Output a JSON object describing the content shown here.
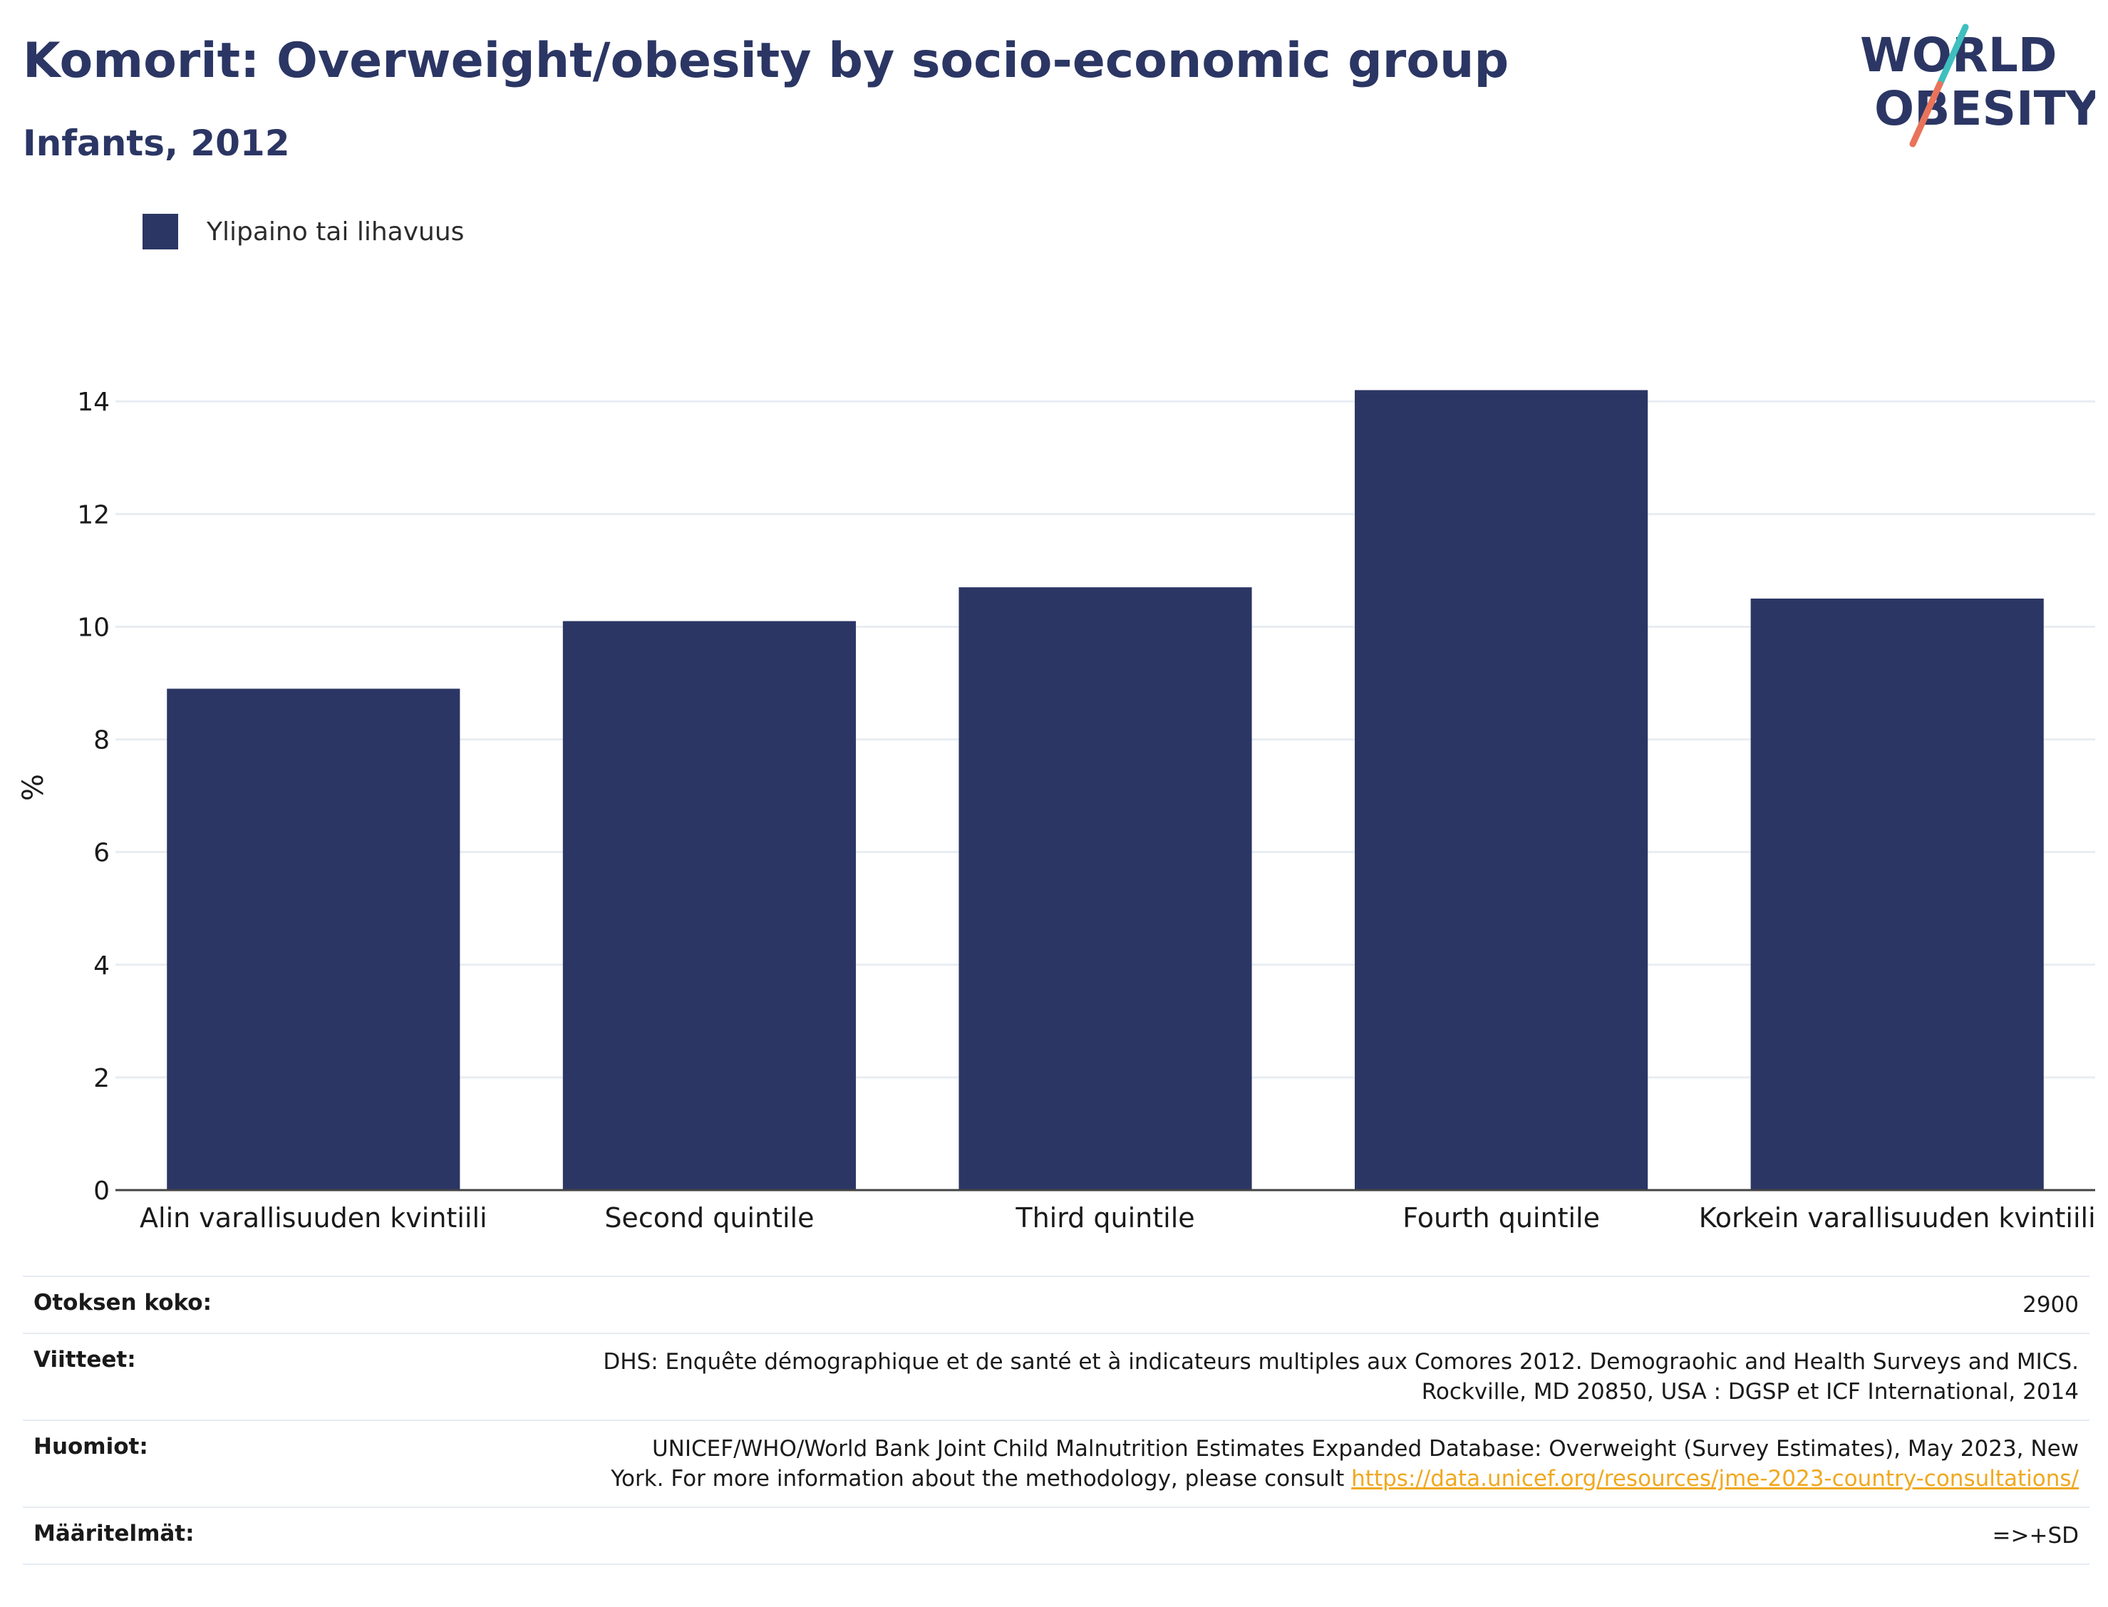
{
  "header": {
    "title": "Komorit: Overweight/obesity by socio-economic group",
    "subtitle": "Infants, 2012"
  },
  "logo": {
    "line1": "WORLD",
    "line2": "OBESITY",
    "colors": {
      "text": "#2b3664",
      "slash_teal": "#3fbfbf",
      "slash_coral": "#e8735a"
    }
  },
  "chart_data": {
    "type": "bar",
    "categories": [
      "Alin varallisuuden kvintiili",
      "Second quintile",
      "Third quintile",
      "Fourth quintile",
      "Korkein varallisuuden kvintiili"
    ],
    "series": [
      {
        "name": "Ylipaino tai lihavuus",
        "values": [
          8.9,
          10.1,
          10.7,
          14.2,
          10.5
        ],
        "color": "#2b3664"
      }
    ],
    "title": "",
    "xlabel": "",
    "ylabel": "%",
    "ylim": [
      0,
      14.8
    ],
    "yticks": [
      0,
      2,
      4,
      6,
      8,
      10,
      12,
      14
    ],
    "grid": true,
    "legend_position": "top-left"
  },
  "info": {
    "sample_label": "Otoksen koko:",
    "sample_value": "2900",
    "references_label": "Viitteet:",
    "references_line1": "DHS: Enquête démographique et de santé et à indicateurs multiples aux Comores 2012. Demograohic and Health Surveys and MICS.",
    "references_line2": "Rockville, MD 20850, USA : DGSP et ICF International, 2014",
    "notes_label": "Huomiot:",
    "notes_line1": "UNICEF/WHO/World Bank Joint Child Malnutrition Estimates Expanded Database: Overweight (Survey Estimates), May 2023, New",
    "notes_line2": "York. For more information about the methodology, please consult",
    "notes_link": "https://data.unicef.org/resources/jme-2023-country-consultations/",
    "definitions_label": "Määritelmät:",
    "definitions_value": "=>+SD"
  }
}
